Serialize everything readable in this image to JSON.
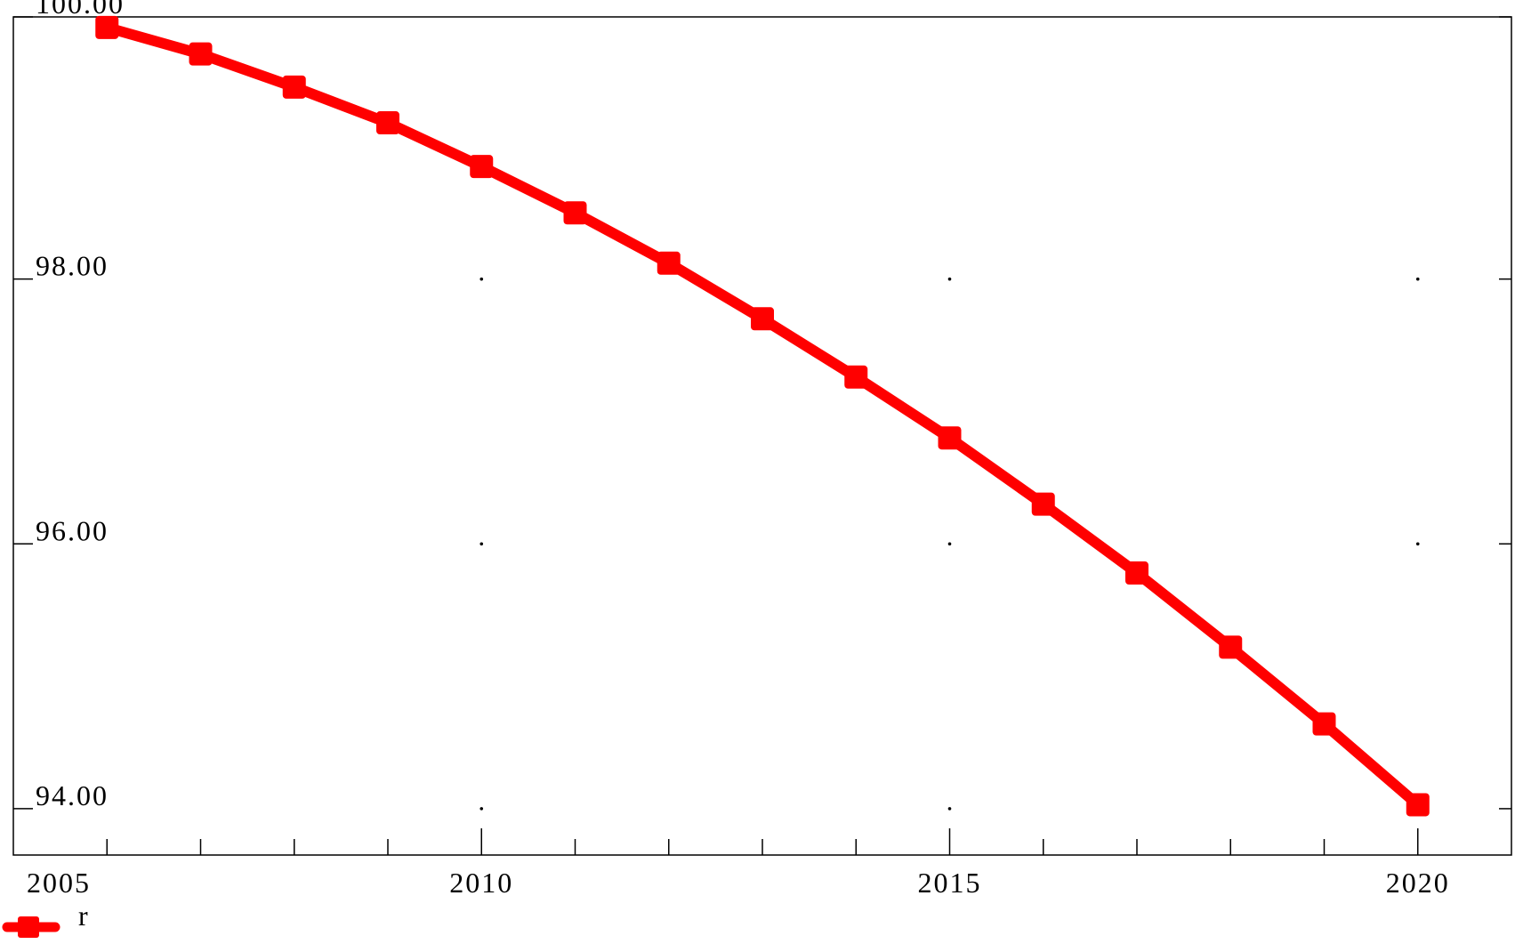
{
  "chart_data": {
    "type": "line",
    "x": [
      2006,
      2007,
      2008,
      2009,
      2010,
      2011,
      2012,
      2013,
      2014,
      2015,
      2016,
      2017,
      2018,
      2019,
      2020
    ],
    "series": [
      {
        "name": "r",
        "color": "#ff0000",
        "marker": "square",
        "values": [
          99.9,
          99.7,
          99.45,
          99.18,
          98.85,
          98.5,
          98.12,
          97.7,
          97.26,
          96.8,
          96.3,
          95.78,
          95.22,
          94.64,
          94.03
        ]
      }
    ],
    "xlim": [
      2005,
      2021
    ],
    "ylim": [
      93.65,
      99.98
    ],
    "x_major_ticks": [
      2005,
      2010,
      2015,
      2020
    ],
    "x_minor_step": 1,
    "y_major_ticks": [
      94,
      96,
      98,
      100
    ],
    "x_tick_labels": [
      "2005",
      "2010",
      "2015",
      "2020"
    ],
    "y_tick_labels": [
      "94.00",
      "96.00",
      "98.00",
      "100.00"
    ],
    "grid": "dots",
    "legend": "bottom-left",
    "title": "",
    "xlabel": "",
    "ylabel": ""
  }
}
